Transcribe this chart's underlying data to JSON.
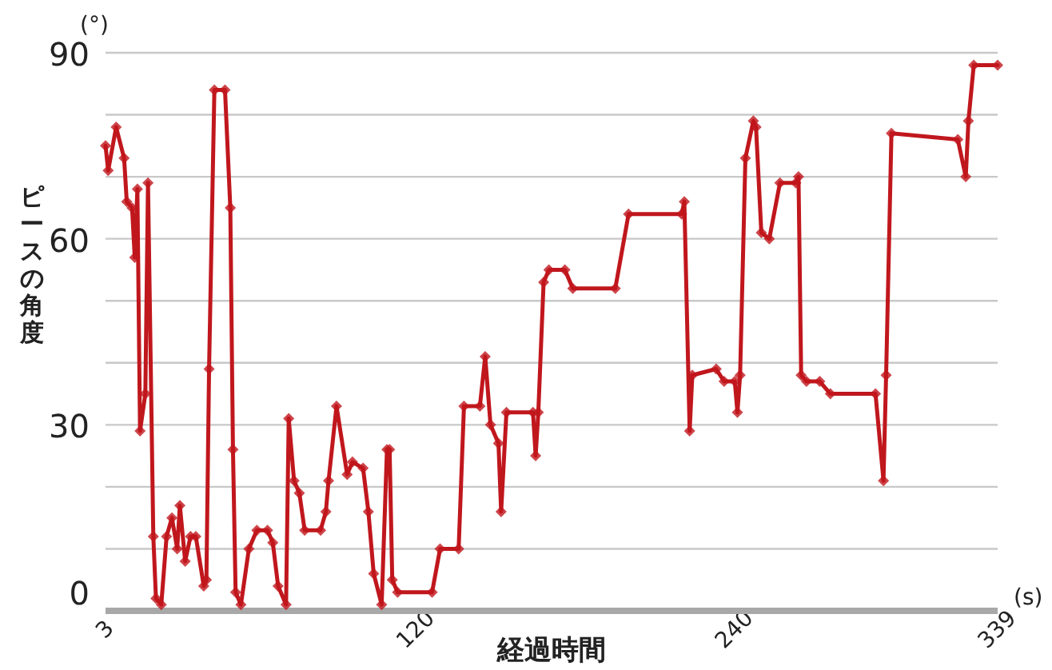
{
  "chart_data": {
    "type": "line",
    "xlabel": "経過時間",
    "ylabel": "ピースの角度",
    "annotations": [
      "(°)",
      "(s)"
    ],
    "xlim": [
      3,
      339
    ],
    "xticks": [
      3,
      120,
      240,
      339
    ],
    "ylim": [
      0,
      90
    ],
    "yticks": [
      0,
      {
        "value": 10,
        "label": null
      },
      {
        "value": 20,
        "label": null
      },
      30,
      {
        "value": 40,
        "label": null
      },
      {
        "value": 50,
        "label": null
      },
      60,
      {
        "value": 70,
        "label": null
      },
      {
        "value": 80,
        "label": null
      },
      90
    ],
    "grid": "y",
    "marker": "diamond",
    "line_style": "solid",
    "series": [
      {
        "color": "#c0171d",
        "x": [
          3,
          4,
          7,
          10,
          11,
          13,
          14,
          15,
          16,
          18,
          19,
          21,
          22,
          24,
          26,
          28,
          30,
          31,
          33,
          35,
          37,
          40,
          41,
          42,
          44,
          48,
          50,
          51,
          52,
          54,
          57,
          60,
          64,
          66,
          68,
          71,
          72,
          74,
          76,
          78,
          84,
          86,
          87,
          90,
          94,
          96,
          100,
          102,
          104,
          107,
          109,
          110,
          111,
          113,
          126,
          129,
          136,
          138,
          144,
          146,
          148,
          151,
          152,
          154,
          164,
          165,
          166,
          168,
          170,
          176,
          179,
          195,
          200,
          220,
          221,
          223,
          224,
          233,
          236,
          240,
          241,
          242,
          244,
          247,
          248,
          250,
          253,
          257,
          263,
          264,
          265,
          267,
          272,
          276,
          293,
          296,
          297,
          299,
          324,
          327,
          328,
          330,
          339
        ],
        "values": [
          75,
          71,
          78,
          73,
          66,
          65,
          57,
          68,
          29,
          35,
          69,
          12,
          2,
          1,
          12,
          15,
          10,
          17,
          8,
          12,
          12,
          4,
          5,
          39,
          84,
          84,
          65,
          26,
          3,
          1,
          10,
          13,
          13,
          11,
          4,
          1,
          31,
          21,
          19,
          13,
          13,
          16,
          21,
          33,
          22,
          24,
          23,
          16,
          6,
          1,
          26,
          26,
          5,
          3,
          3,
          10,
          10,
          33,
          33,
          41,
          30,
          27,
          16,
          32,
          32,
          25,
          32,
          53,
          55,
          55,
          52,
          52,
          64,
          64,
          66,
          29,
          38,
          39,
          37,
          37,
          32,
          38,
          73,
          79,
          78,
          61,
          60,
          69,
          69,
          70,
          38,
          37,
          37,
          35,
          35,
          21,
          38,
          77,
          76,
          70,
          79,
          88,
          88
        ]
      }
    ]
  }
}
